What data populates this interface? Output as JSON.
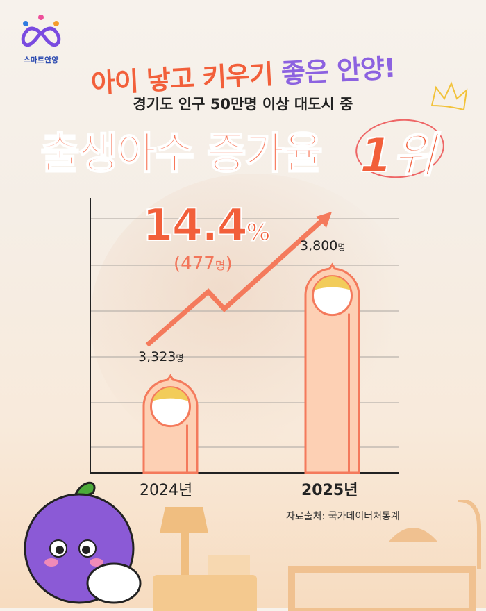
{
  "logo": {
    "text": "스마트안양"
  },
  "header": {
    "headline_part1": "아이 낳고 키우기",
    "headline_part2": "좋은 안양!",
    "subtitle": "경기도 인구 50만명 이상 대도시 중",
    "main_title": "출생아수 증가율",
    "rank": "1위"
  },
  "highlight": {
    "percent": "14.4",
    "percent_sign": "%",
    "diff_open": "(",
    "diff_value": "477",
    "diff_unit": "명",
    "diff_close": ")"
  },
  "chart_data": {
    "type": "bar",
    "categories": [
      "2024년",
      "2025년"
    ],
    "values": [
      3323,
      3800
    ],
    "value_labels": [
      "3,323",
      "3,800"
    ],
    "value_unit": "명",
    "title": "",
    "xlabel": "",
    "ylabel": "",
    "grid": true,
    "trend_arrow": "up",
    "colors": {
      "bar": "#fdd0b4",
      "bar_outline": "#f47a5c",
      "arrow": "#f47a5c",
      "grid": "#b9b2ac"
    }
  },
  "source": "자료출처: 국가데이터처통계"
}
